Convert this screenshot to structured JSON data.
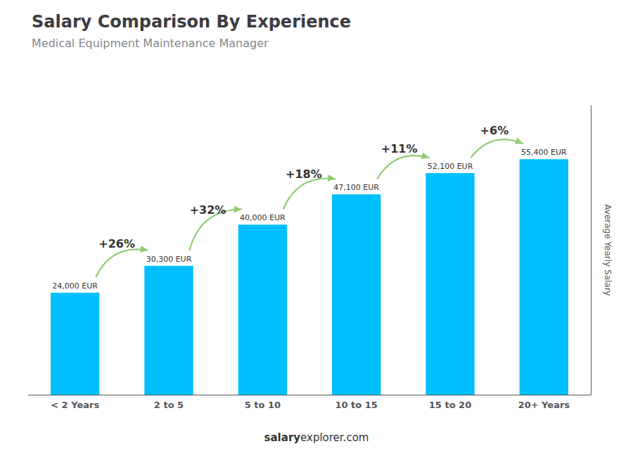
{
  "chart_data": {
    "type": "bar",
    "title": "Salary Comparison By Experience",
    "subtitle": "Medical Equipment Maintenance Manager",
    "categories": [
      "< 2 Years",
      "2 to 5",
      "5 to 10",
      "10 to 15",
      "15 to 20",
      "20+ Years"
    ],
    "values": [
      24000,
      30300,
      40000,
      47100,
      52100,
      55400
    ],
    "value_labels": [
      "24,000 EUR",
      "30,300 EUR",
      "40,000 EUR",
      "47,100 EUR",
      "52,100 EUR",
      "55,400 EUR"
    ],
    "data_labels": true,
    "color": "#00BFFF",
    "ylabel": "Average Yearly Salary",
    "ylim": [
      0,
      68000
    ],
    "grid": false,
    "tick_labels": "x",
    "annotations": [
      "+26%",
      "+32%",
      "+18%",
      "+11%",
      "+6%"
    ],
    "footer": [
      "salary",
      "explorer.com"
    ]
  }
}
